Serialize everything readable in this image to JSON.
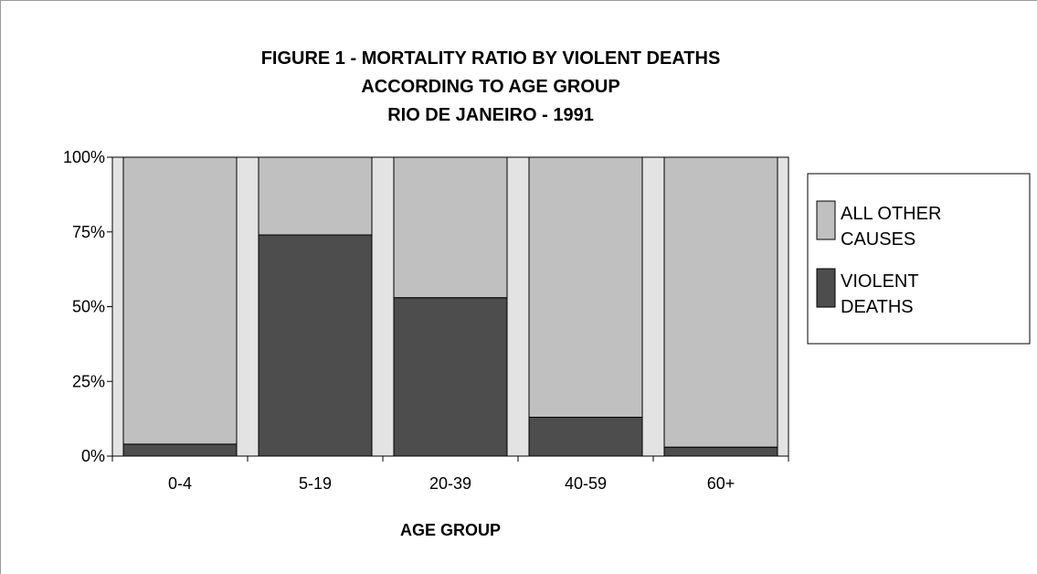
{
  "chart_data": {
    "type": "bar",
    "stacked": true,
    "percent_stacked": true,
    "title": [
      "FIGURE 1 - MORTALITY RATIO BY VIOLENT DEATHS",
      "ACCORDING TO AGE GROUP",
      "RIO DE JANEIRO - 1991"
    ],
    "xlabel": "AGE GROUP",
    "ylabel": "",
    "categories": [
      "0-4",
      "5-19",
      "20-39",
      "40-59",
      "60+"
    ],
    "ylim": [
      0,
      100
    ],
    "yticks": [
      "0%",
      "25%",
      "50%",
      "75%",
      "100%"
    ],
    "ytick_values": [
      0,
      25,
      50,
      75,
      100
    ],
    "grid": false,
    "legend_position": "right",
    "series": [
      {
        "name": "VIOLENT DEATHS",
        "legend_lines": [
          "VIOLENT",
          "DEATHS"
        ],
        "color": "#4d4d4d",
        "values": [
          4,
          74,
          53,
          13,
          3
        ]
      },
      {
        "name": "ALL OTHER CAUSES",
        "legend_lines": [
          "ALL OTHER",
          "CAUSES"
        ],
        "color": "#c0c0c0",
        "values": [
          96,
          26,
          47,
          87,
          97
        ]
      }
    ],
    "plot_background": "#e3e3e3"
  }
}
